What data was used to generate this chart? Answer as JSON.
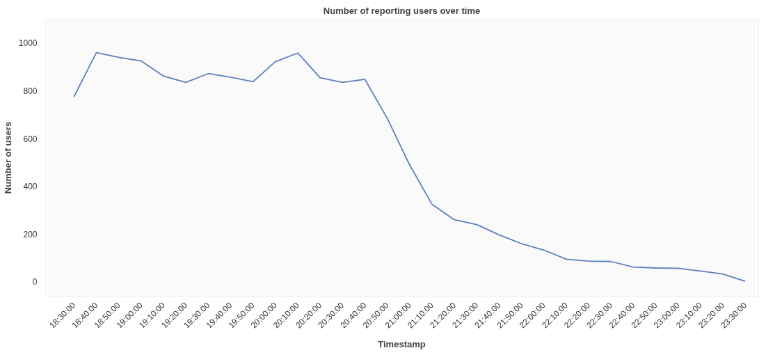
{
  "chart_data": {
    "type": "line",
    "title": "Number of reporting users over time",
    "xlabel": "Timestamp",
    "ylabel": "Number of users",
    "categories": [
      "18:30:00",
      "18:40:00",
      "18:50:00",
      "19:00:00",
      "19:10:00",
      "19:20:00",
      "19:30:00",
      "19:40:00",
      "19:50:00",
      "20:00:00",
      "20:10:00",
      "20:20:00",
      "20:30:00",
      "20:40:00",
      "20:50:00",
      "21:00:00",
      "21:10:00",
      "21:20:00",
      "21:30:00",
      "21:40:00",
      "21:50:00",
      "22:00:00",
      "22:10:00",
      "22:20:00",
      "22:30:00",
      "22:40:00",
      "22:50:00",
      "23:00:00",
      "23:10:00",
      "23:20:00",
      "23:30:00"
    ],
    "series": [
      {
        "color": "#5b7fbe",
        "values": [
          775,
          960,
          940,
          925,
          862,
          835,
          872,
          857,
          838,
          922,
          958,
          855,
          835,
          848,
          685,
          490,
          325,
          260,
          240,
          197,
          160,
          133,
          95,
          87,
          85,
          62,
          58,
          57,
          45,
          33,
          2
        ]
      }
    ],
    "ylim": [
      -60,
      1100
    ],
    "yticks": [
      0,
      200,
      400,
      600,
      800,
      1000
    ],
    "grid": false,
    "marker": "none",
    "line_style": "solid"
  }
}
